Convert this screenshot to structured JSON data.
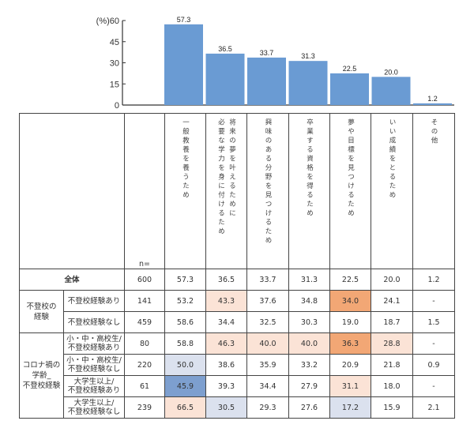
{
  "chart_data": {
    "type": "bar",
    "ylabel": "(%)",
    "ylim": [
      0,
      60
    ],
    "yticks": [
      0,
      15,
      30,
      45,
      60
    ],
    "categories": [
      "一般教養を養うため",
      "将来の夢を叶えるために必要な学力を身に付けるため",
      "興味のある分野を見つけるため",
      "卒業する資格を得るため",
      "夢や目標を見つけるため",
      "いい成績をとるため",
      "その他"
    ],
    "values": [
      57.3,
      36.5,
      33.7,
      31.3,
      22.5,
      20.0,
      1.2
    ],
    "value_labels": [
      "57.3",
      "36.5",
      "33.7",
      "31.3",
      "22.5",
      "20.0",
      "1.2"
    ],
    "bar_color": "#6a9bd3"
  },
  "table": {
    "n_label": "n=",
    "headers": [
      [
        "一般教養を養うため"
      ],
      [
        "将来の夢を叶えるために",
        "必要な学力を身に付けるため"
      ],
      [
        "興味のある分野を見つけるため"
      ],
      [
        "卒業する資格を得るため"
      ],
      [
        "夢や目標を見つけるため"
      ],
      [
        "いい成績をとるため"
      ],
      [
        "その他"
      ]
    ],
    "total": {
      "label": "全体",
      "n": "600",
      "values": [
        "57.3",
        "36.5",
        "33.7",
        "31.3",
        "22.5",
        "20.0",
        "1.2"
      ]
    },
    "groups": [
      {
        "label": "不登校の\n経験",
        "rows": [
          {
            "label": "不登校経験あり",
            "n": "141",
            "values": [
              "53.2",
              "43.3",
              "37.6",
              "34.8",
              "34.0",
              "24.1",
              "-"
            ],
            "shade": [
              "",
              "lo",
              "",
              "",
              "ho",
              "",
              ""
            ]
          },
          {
            "label": "不登校経験なし",
            "n": "459",
            "values": [
              "58.6",
              "34.4",
              "32.5",
              "30.3",
              "19.0",
              "18.7",
              "1.5"
            ],
            "shade": [
              "",
              "",
              "",
              "",
              "",
              "",
              ""
            ]
          }
        ]
      },
      {
        "label": "コロナ禍の\n学齢_\n不登校経験",
        "rows": [
          {
            "label": "小・中・高校生/\n不登校経験あり",
            "n": "80",
            "values": [
              "58.8",
              "46.3",
              "40.0",
              "40.0",
              "36.3",
              "28.8",
              "-"
            ],
            "shade": [
              "",
              "lo",
              "lo",
              "lo",
              "ho",
              "lo",
              ""
            ]
          },
          {
            "label": "小・中・高校生/\n不登校経験なし",
            "n": "220",
            "values": [
              "50.0",
              "38.6",
              "35.9",
              "33.2",
              "20.9",
              "21.8",
              "0.9"
            ],
            "shade": [
              "lb",
              "",
              "",
              "",
              "",
              "",
              ""
            ]
          },
          {
            "label": "大学生以上/\n不登校経験あり",
            "n": "61",
            "values": [
              "45.9",
              "39.3",
              "34.4",
              "27.9",
              "31.1",
              "18.0",
              "-"
            ],
            "shade": [
              "hb",
              "",
              "",
              "",
              "lo",
              "",
              ""
            ]
          },
          {
            "label": "大学生以上/\n不登校経験なし",
            "n": "239",
            "values": [
              "66.5",
              "30.5",
              "29.3",
              "27.6",
              "17.2",
              "15.9",
              "2.1"
            ],
            "shade": [
              "lo",
              "lb",
              "",
              "",
              "lb",
              "",
              ""
            ]
          }
        ]
      }
    ],
    "colors": {
      "light_orange": "#fbe3d6",
      "strong_orange": "#f2a775",
      "light_blue": "#dbe1ee",
      "strong_blue": "#7d9fcf"
    }
  }
}
